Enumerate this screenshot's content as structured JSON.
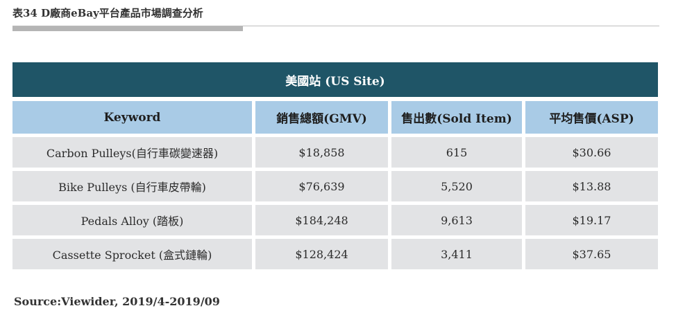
{
  "document": {
    "title": "表34 D廠商eBay平台產品市場調查分析",
    "source": "Source:Viewider, 2019/4-2019/09"
  },
  "table": {
    "site_header": "美國站 (US Site)",
    "columns": [
      "Keyword",
      "銷售總額(GMV)",
      "售出數(Sold Item)",
      "平均售價(ASP)"
    ],
    "rows": [
      {
        "keyword": "Carbon Pulleys(自行車碳變速器)",
        "gmv": "$18,858",
        "sold": "615",
        "asp": "$30.66"
      },
      {
        "keyword": "Bike Pulleys (自行車皮帶輪)",
        "gmv": "$76,639",
        "sold": "5,520",
        "asp": "$13.88"
      },
      {
        "keyword": "Pedals Alloy (踏板)",
        "gmv": "$184,248",
        "sold": "9,613",
        "asp": "$19.17"
      },
      {
        "keyword": "Cassette Sprocket (盒式鏈輪)",
        "gmv": "$128,424",
        "sold": "3,411",
        "asp": "$37.65"
      }
    ]
  },
  "colors": {
    "header_band": "#1f5567",
    "column_header": "#a9cbe6",
    "row_background": "#e2e3e5",
    "title_underline": "#b5b5b5"
  }
}
